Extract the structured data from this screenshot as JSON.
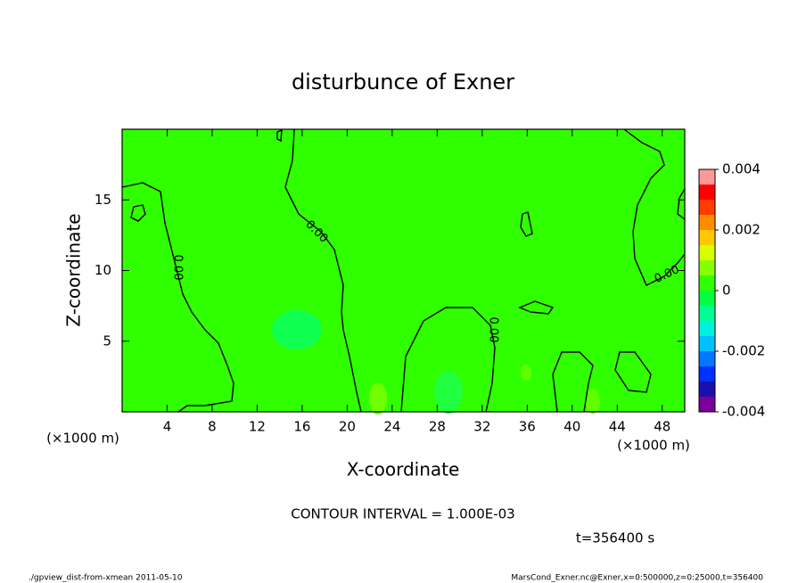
{
  "chart_data": {
    "type": "contour",
    "title": "disturbunce of Exner",
    "x_label": "X-coordinate",
    "y_label": "Z-coordinate",
    "x_unit": "(×1000 m)",
    "xlim": [
      0,
      50
    ],
    "xticks": [
      4,
      8,
      12,
      16,
      20,
      24,
      28,
      32,
      36,
      40,
      44,
      48
    ],
    "ylim": [
      0,
      20
    ],
    "yticks": [
      5,
      10,
      15
    ],
    "contour_label": "0.00",
    "colorbar": {
      "levels": [
        -0.004,
        -0.0035,
        -0.003,
        -0.0025,
        -0.002,
        -0.0015,
        -0.001,
        -0.0005,
        0,
        0.0005,
        0.001,
        0.0015,
        0.002,
        0.0025,
        0.003,
        0.0035,
        0.004
      ],
      "colors": [
        "#7a0099",
        "#1a10b0",
        "#0030ff",
        "#0078ff",
        "#00c0ff",
        "#00f0e0",
        "#00ff90",
        "#00ff40",
        "#30ff00",
        "#88ff00",
        "#d8ff00",
        "#ffc800",
        "#ff8c00",
        "#ff3c00",
        "#ff0000",
        "#ff9999"
      ],
      "ticks": [
        -0.004,
        -0.002,
        0,
        0.002,
        0.004
      ]
    },
    "contour_interval": "CONTOUR INTERVAL = 1.000E-03",
    "time": "t=356400 s",
    "footer_left": "./gpview_dist-from-xmean  2011-05-10",
    "footer_right": "MarsCond_Exner.nc@Exner,x=0:500000,z=0:25000,t=356400"
  }
}
